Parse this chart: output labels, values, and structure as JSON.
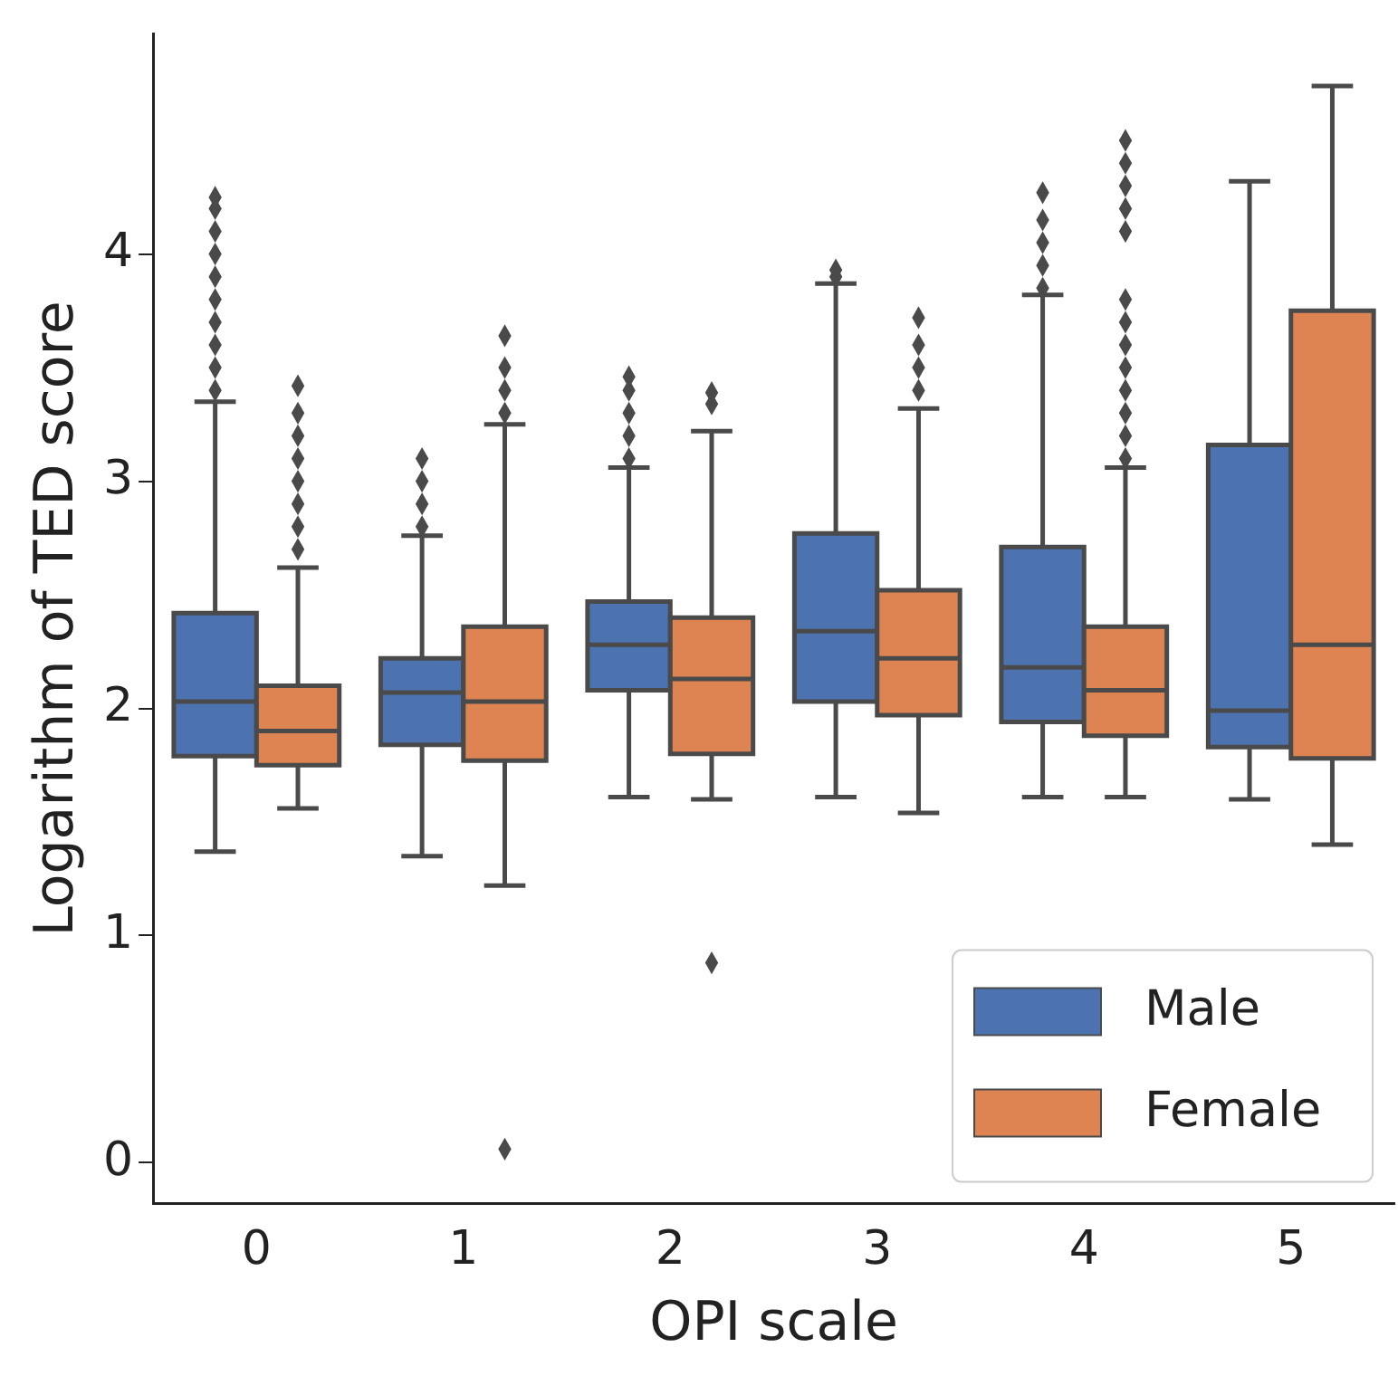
{
  "chart_data": {
    "type": "box",
    "xlabel": "OPI scale",
    "ylabel": "Logarithm of TED score",
    "categories": [
      "0",
      "1",
      "2",
      "3",
      "4",
      "5"
    ],
    "ylim": [
      -0.18,
      4.97
    ],
    "yticks": [
      0,
      1,
      2,
      3,
      4
    ],
    "legend": "bottom right",
    "grid": false,
    "marker": "diamond",
    "series": [
      {
        "name": "Male",
        "color": "#4c72b0",
        "boxes": [
          {
            "low": 1.37,
            "q1": 1.79,
            "median": 2.03,
            "q3": 2.42,
            "high": 3.35,
            "outliers": [
              3.4,
              3.5,
              3.6,
              3.7,
              3.8,
              3.9,
              4.0,
              4.1,
              4.2,
              4.25
            ]
          },
          {
            "low": 1.35,
            "q1": 1.84,
            "median": 2.07,
            "q3": 2.22,
            "high": 2.76,
            "outliers": [
              2.8,
              2.9,
              3.0,
              3.1
            ]
          },
          {
            "low": 1.61,
            "q1": 2.08,
            "median": 2.28,
            "q3": 2.47,
            "high": 3.06,
            "outliers": [
              3.1,
              3.2,
              3.3,
              3.4,
              3.46
            ]
          },
          {
            "low": 1.61,
            "q1": 2.03,
            "median": 2.34,
            "q3": 2.77,
            "high": 3.87,
            "outliers": [
              3.9,
              3.93
            ]
          },
          {
            "low": 1.61,
            "q1": 1.94,
            "median": 2.18,
            "q3": 2.71,
            "high": 3.82,
            "outliers": [
              3.85,
              3.95,
              4.05,
              4.15,
              4.27
            ]
          },
          {
            "low": 1.6,
            "q1": 1.83,
            "median": 1.99,
            "q3": 3.16,
            "high": 4.32
          }
        ]
      },
      {
        "name": "Female",
        "color": "#dd8452",
        "boxes": [
          {
            "low": 1.56,
            "q1": 1.75,
            "median": 1.9,
            "q3": 2.1,
            "high": 2.62,
            "outliers": [
              2.7,
              2.8,
              2.9,
              3.0,
              3.1,
              3.2,
              3.3,
              3.42
            ]
          },
          {
            "low": 1.22,
            "q1": 1.77,
            "median": 2.03,
            "q3": 2.36,
            "high": 3.25,
            "outliers": [
              0.06,
              3.3,
              3.4,
              3.5,
              3.64
            ]
          },
          {
            "low": 1.6,
            "q1": 1.8,
            "median": 2.13,
            "q3": 2.4,
            "high": 3.22,
            "outliers": [
              0.88,
              3.34,
              3.39
            ]
          },
          {
            "low": 1.54,
            "q1": 1.97,
            "median": 2.22,
            "q3": 2.52,
            "high": 3.32,
            "outliers": [
              3.4,
              3.5,
              3.6,
              3.72
            ]
          },
          {
            "low": 1.61,
            "q1": 1.88,
            "median": 2.08,
            "q3": 2.36,
            "high": 3.06,
            "outliers": [
              3.1,
              3.2,
              3.3,
              3.4,
              3.5,
              3.6,
              3.7,
              3.8,
              4.1,
              4.2,
              4.3,
              4.4,
              4.5
            ]
          },
          {
            "low": 1.4,
            "q1": 1.78,
            "median": 2.28,
            "q3": 3.75,
            "high": 4.74
          }
        ]
      }
    ]
  }
}
